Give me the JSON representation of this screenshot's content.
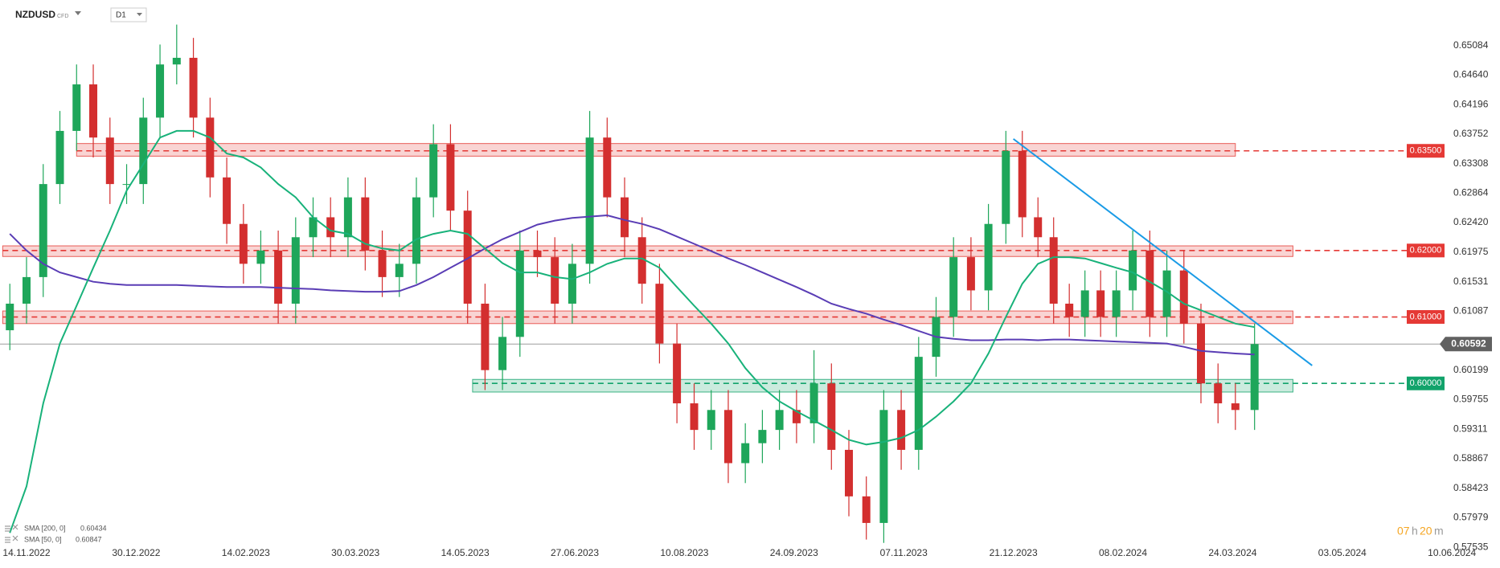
{
  "header": {
    "symbol": "NZDUSD",
    "market": "CFD",
    "interval": "D1"
  },
  "chart_data": {
    "type": "candlestick",
    "x": [
      "07.11.2022",
      "14.11.2022",
      "21.11.2022",
      "28.11.2022",
      "05.12.2022",
      "12.12.2022",
      "19.12.2022",
      "26.12.2022",
      "02.01.2023",
      "09.01.2023",
      "16.01.2023",
      "23.01.2023",
      "30.01.2023",
      "06.02.2023",
      "13.02.2023",
      "20.02.2023",
      "27.02.2023",
      "06.03.2023",
      "13.03.2023",
      "20.03.2023",
      "27.03.2023",
      "03.04.2023",
      "10.04.2023",
      "17.04.2023",
      "24.04.2023",
      "01.05.2023",
      "08.05.2023",
      "15.05.2023",
      "22.05.2023",
      "29.05.2023",
      "05.06.2023",
      "12.06.2023",
      "19.06.2023",
      "26.06.2023",
      "03.07.2023",
      "10.07.2023",
      "17.07.2023",
      "24.07.2023",
      "31.07.2023",
      "07.08.2023",
      "14.08.2023",
      "21.08.2023",
      "28.08.2023",
      "04.09.2023",
      "11.09.2023",
      "18.09.2023",
      "25.09.2023",
      "02.10.2023",
      "09.10.2023",
      "16.10.2023",
      "23.10.2023",
      "30.10.2023",
      "06.11.2023",
      "13.11.2023",
      "20.11.2023",
      "27.11.2023",
      "04.12.2023",
      "11.12.2023",
      "18.12.2023",
      "25.12.2023",
      "01.01.2024",
      "08.01.2024",
      "15.01.2024",
      "22.01.2024",
      "29.01.2024",
      "05.02.2024",
      "12.02.2024",
      "19.02.2024",
      "26.02.2024",
      "04.03.2024",
      "11.03.2024",
      "18.03.2024",
      "25.03.2024",
      "01.04.2024"
    ],
    "open": [
      0.608,
      0.612,
      0.616,
      0.63,
      0.638,
      0.645,
      0.637,
      0.63,
      0.63,
      0.64,
      0.648,
      0.649,
      0.64,
      0.631,
      0.624,
      0.618,
      0.62,
      0.612,
      0.622,
      0.625,
      0.622,
      0.628,
      0.62,
      0.616,
      0.618,
      0.628,
      0.636,
      0.626,
      0.612,
      0.602,
      0.607,
      0.62,
      0.619,
      0.612,
      0.618,
      0.637,
      0.628,
      0.622,
      0.615,
      0.606,
      0.597,
      0.593,
      0.596,
      0.588,
      0.591,
      0.593,
      0.596,
      0.594,
      0.6,
      0.59,
      0.583,
      0.579,
      0.596,
      0.59,
      0.604,
      0.61,
      0.619,
      0.614,
      0.624,
      0.635,
      0.625,
      0.622,
      0.612,
      0.61,
      0.614,
      0.61,
      0.614,
      0.62,
      0.61,
      0.617,
      0.609,
      0.6,
      0.597,
      0.596
    ],
    "high": [
      0.615,
      0.619,
      0.633,
      0.641,
      0.648,
      0.648,
      0.64,
      0.633,
      0.643,
      0.651,
      0.654,
      0.652,
      0.643,
      0.634,
      0.627,
      0.623,
      0.623,
      0.625,
      0.628,
      0.628,
      0.631,
      0.631,
      0.623,
      0.621,
      0.631,
      0.639,
      0.639,
      0.629,
      0.615,
      0.61,
      0.623,
      0.623,
      0.622,
      0.621,
      0.641,
      0.64,
      0.631,
      0.625,
      0.618,
      0.609,
      0.6,
      0.599,
      0.599,
      0.594,
      0.596,
      0.599,
      0.599,
      0.605,
      0.603,
      0.593,
      0.586,
      0.599,
      0.599,
      0.607,
      0.613,
      0.622,
      0.622,
      0.627,
      0.638,
      0.638,
      0.628,
      0.625,
      0.615,
      0.617,
      0.617,
      0.617,
      0.623,
      0.623,
      0.62,
      0.62,
      0.612,
      0.603,
      0.6,
      0.609
    ],
    "low": [
      0.605,
      0.609,
      0.613,
      0.627,
      0.635,
      0.634,
      0.627,
      0.627,
      0.627,
      0.637,
      0.645,
      0.637,
      0.628,
      0.621,
      0.615,
      0.615,
      0.609,
      0.609,
      0.619,
      0.619,
      0.619,
      0.617,
      0.613,
      0.613,
      0.615,
      0.625,
      0.623,
      0.609,
      0.599,
      0.599,
      0.604,
      0.616,
      0.609,
      0.609,
      0.615,
      0.625,
      0.619,
      0.612,
      0.603,
      0.594,
      0.59,
      0.59,
      0.585,
      0.585,
      0.588,
      0.59,
      0.591,
      0.591,
      0.587,
      0.58,
      0.5765,
      0.576,
      0.587,
      0.587,
      0.601,
      0.607,
      0.611,
      0.611,
      0.621,
      0.622,
      0.619,
      0.609,
      0.607,
      0.607,
      0.607,
      0.607,
      0.611,
      0.607,
      0.607,
      0.606,
      0.597,
      0.594,
      0.593,
      0.593
    ],
    "close": [
      0.612,
      0.616,
      0.63,
      0.638,
      0.645,
      0.637,
      0.63,
      0.63,
      0.64,
      0.648,
      0.649,
      0.64,
      0.631,
      0.624,
      0.618,
      0.62,
      0.612,
      0.622,
      0.625,
      0.622,
      0.628,
      0.62,
      0.616,
      0.618,
      0.628,
      0.636,
      0.626,
      0.612,
      0.602,
      0.607,
      0.62,
      0.619,
      0.612,
      0.618,
      0.637,
      0.628,
      0.622,
      0.615,
      0.606,
      0.597,
      0.593,
      0.596,
      0.588,
      0.591,
      0.593,
      0.596,
      0.594,
      0.6,
      0.59,
      0.583,
      0.579,
      0.596,
      0.59,
      0.604,
      0.61,
      0.619,
      0.614,
      0.624,
      0.635,
      0.625,
      0.622,
      0.612,
      0.61,
      0.614,
      0.61,
      0.614,
      0.62,
      0.61,
      0.617,
      0.609,
      0.6,
      0.597,
      0.596,
      0.60592
    ],
    "up_color": "#1ea65a",
    "down_color": "#d32f2f",
    "series": [
      {
        "name": "SMA [200, 0]",
        "color": "#5a3db5",
        "values": [
          0.6225,
          0.62,
          0.618,
          0.6167,
          0.616,
          0.6153,
          0.615,
          0.6148,
          0.6148,
          0.6148,
          0.6148,
          0.6147,
          0.6146,
          0.6145,
          0.6145,
          0.6145,
          0.6144,
          0.6143,
          0.6142,
          0.614,
          0.6139,
          0.6138,
          0.6138,
          0.6139,
          0.6148,
          0.616,
          0.6174,
          0.6188,
          0.6203,
          0.6217,
          0.6228,
          0.6239,
          0.6245,
          0.6249,
          0.6251,
          0.6253,
          0.6246,
          0.624,
          0.6232,
          0.6221,
          0.621,
          0.6199,
          0.6188,
          0.6178,
          0.6167,
          0.6156,
          0.6145,
          0.6133,
          0.612,
          0.6112,
          0.6105,
          0.6096,
          0.6088,
          0.6079,
          0.607,
          0.6067,
          0.6065,
          0.6065,
          0.6066,
          0.6066,
          0.6065,
          0.6066,
          0.6066,
          0.6065,
          0.6064,
          0.6063,
          0.6062,
          0.6061,
          0.606,
          0.6055,
          0.6049,
          0.6047,
          0.6045,
          0.60434
        ]
      },
      {
        "name": "SMA [50, 0]",
        "color": "#18b27a",
        "values": [
          0.5775,
          0.5845,
          0.597,
          0.606,
          0.6117,
          0.6174,
          0.623,
          0.629,
          0.633,
          0.637,
          0.638,
          0.638,
          0.637,
          0.6346,
          0.634,
          0.6325,
          0.63,
          0.628,
          0.625,
          0.623,
          0.6225,
          0.621,
          0.6203,
          0.62,
          0.6217,
          0.6225,
          0.623,
          0.6225,
          0.6203,
          0.6181,
          0.6167,
          0.6167,
          0.616,
          0.6157,
          0.6167,
          0.618,
          0.6188,
          0.6188,
          0.6174,
          0.6145,
          0.6117,
          0.609,
          0.606,
          0.6023,
          0.5994,
          0.5973,
          0.5958,
          0.5944,
          0.593,
          0.5915,
          0.5908,
          0.5912,
          0.5918,
          0.593,
          0.595,
          0.5973,
          0.6,
          0.6045,
          0.61,
          0.615,
          0.618,
          0.619,
          0.619,
          0.6188,
          0.6181,
          0.6174,
          0.6167,
          0.6153,
          0.6138,
          0.612,
          0.611,
          0.61,
          0.609,
          0.60847
        ]
      }
    ],
    "levels": [
      {
        "value": 0.635,
        "label": "0.63500",
        "low": 0.6342,
        "high": 0.6361,
        "start": "05.12.2022",
        "end": "25.03.2024",
        "color": "#e53935"
      },
      {
        "value": 0.62,
        "label": "0.62000",
        "low": 0.6191,
        "high": 0.6207,
        "start": "04.11.2022",
        "end": "15.04.2024",
        "color": "#e53935"
      },
      {
        "value": 0.61,
        "label": "0.61000",
        "low": 0.609,
        "high": 0.6109,
        "start": "04.11.2022",
        "end": "15.04.2024",
        "color": "#e53935"
      },
      {
        "value": 0.6,
        "label": "0.60000",
        "low": 0.5987,
        "high": 0.6006,
        "start": "17.05.2023",
        "end": "15.04.2024",
        "color": "#12a36b"
      }
    ],
    "trendline": {
      "x": [
        "21.12.2023",
        "22.04.2024"
      ],
      "values": [
        0.6368,
        0.6027
      ],
      "color": "#1a9be6"
    },
    "ylim": [
      0.575,
      0.6577
    ],
    "yticks": [
      0.65084,
      {
        "value": 0.6464,
        "label": "0.64640"
      },
      0.64196,
      0.63752,
      0.63308,
      0.62864,
      {
        "value": 0.6242,
        "label": "0.62420"
      },
      0.61975,
      0.61531,
      0.61087,
      0.60199,
      0.59755,
      0.59311,
      0.58867,
      0.58423,
      0.57979,
      0.57535
    ],
    "xticks": [
      "14.11.2022",
      "30.12.2022",
      "14.02.2023",
      "30.03.2023",
      "14.05.2023",
      "27.06.2023",
      "10.08.2023",
      "24.09.2023",
      "07.11.2023",
      "21.12.2023",
      "08.02.2024",
      "24.03.2024",
      "03.05.2024",
      "10.06.2024"
    ],
    "countdown": {
      "hours": "07",
      "hours_unit": "h",
      "minutes": "20",
      "minutes_unit": "m"
    }
  }
}
